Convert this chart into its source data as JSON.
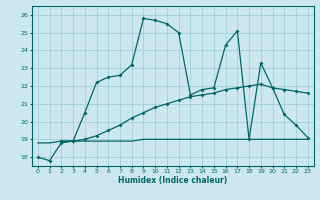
{
  "xlabel": "Humidex (Indice chaleur)",
  "xlim": [
    -0.5,
    23.5
  ],
  "ylim": [
    17.5,
    26.5
  ],
  "yticks": [
    18,
    19,
    20,
    21,
    22,
    23,
    24,
    25,
    26
  ],
  "xticks": [
    0,
    1,
    2,
    3,
    4,
    5,
    6,
    7,
    8,
    9,
    10,
    11,
    12,
    13,
    14,
    15,
    16,
    17,
    18,
    19,
    20,
    21,
    22,
    23
  ],
  "bg_color": "#cce8ee",
  "line_color": "#006666",
  "grid_color": "#99ccd4",
  "line1_x": [
    0,
    1,
    2,
    3,
    4,
    5,
    6,
    7,
    8,
    9,
    10,
    11,
    12,
    13,
    14,
    15,
    16,
    17,
    18,
    19,
    20,
    21,
    22,
    23
  ],
  "line1_y": [
    18.0,
    17.8,
    18.8,
    18.9,
    20.5,
    22.2,
    22.5,
    22.6,
    23.2,
    25.8,
    25.7,
    25.5,
    25.0,
    21.5,
    21.8,
    21.9,
    24.3,
    25.1,
    19.0,
    23.3,
    21.9,
    20.4,
    19.8,
    19.1
  ],
  "line2_x": [
    2,
    3,
    4,
    5,
    6,
    7,
    8,
    9,
    10,
    11,
    12,
    13,
    14,
    15,
    16,
    17,
    18,
    19,
    20,
    21,
    22,
    23
  ],
  "line2_y": [
    18.9,
    18.9,
    19.0,
    19.2,
    19.5,
    19.8,
    20.2,
    20.5,
    20.8,
    21.0,
    21.2,
    21.4,
    21.5,
    21.6,
    21.8,
    21.9,
    22.0,
    22.1,
    21.9,
    21.8,
    21.7,
    21.6
  ],
  "line3_x": [
    0,
    1,
    2,
    3,
    4,
    5,
    6,
    7,
    8,
    9,
    10,
    11,
    12,
    13,
    14,
    15,
    16,
    17,
    18,
    19,
    20,
    21,
    22,
    23
  ],
  "line3_y": [
    18.8,
    18.8,
    18.9,
    18.9,
    18.9,
    18.9,
    18.9,
    18.9,
    18.9,
    19.0,
    19.0,
    19.0,
    19.0,
    19.0,
    19.0,
    19.0,
    19.0,
    19.0,
    19.0,
    19.0,
    19.0,
    19.0,
    19.0,
    19.0
  ]
}
